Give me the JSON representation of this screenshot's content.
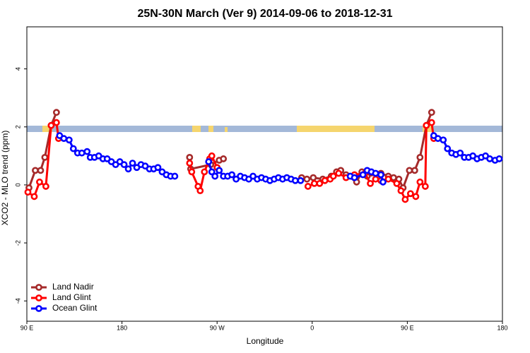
{
  "chart_data": {
    "type": "line",
    "title": "25N-30N March (Ver 9)   2014-09-06 to 2018-12-31",
    "xlabel": "Longitude",
    "ylabel": "XCO2 - MLO trend (ppm)",
    "xlim": [
      90,
      540
    ],
    "ylim": [
      -4.7,
      5.45
    ],
    "xticks": [
      {
        "value": 90,
        "label": "90 E"
      },
      {
        "value": 180,
        "label": "180"
      },
      {
        "value": 270,
        "label": "90 W"
      },
      {
        "value": 360,
        "label": "0"
      },
      {
        "value": 450,
        "label": "90 E"
      },
      {
        "value": 540,
        "label": "180"
      }
    ],
    "yticks": [
      -4,
      -2,
      0,
      2,
      4
    ],
    "legend": "bottom-left",
    "series": [
      {
        "name": "Land Nadir",
        "color": "#a52a2a",
        "x": [
          92,
          98,
          103,
          107,
          113,
          118,
          180,
          244,
          245,
          264,
          272,
          276,
          310,
          350,
          355,
          361,
          370,
          378,
          383,
          387,
          392,
          402,
          407,
          412,
          425,
          432,
          437,
          442,
          446,
          452,
          457,
          462,
          468,
          473
        ],
        "values": [
          -0.1,
          0.5,
          0.5,
          0.95,
          2.05,
          2.5,
          null,
          0.95,
          0.55,
          0.7,
          0.85,
          0.9,
          null,
          0.25,
          0.2,
          0.25,
          0.2,
          0.3,
          0.45,
          0.5,
          0.35,
          0.1,
          0.45,
          0.3,
          0.4,
          0.3,
          0.25,
          0.2,
          -0.1,
          0.5,
          0.5,
          0.95,
          2.05,
          2.5
        ]
      },
      {
        "name": "Land Glint",
        "color": "#ff0000",
        "x": [
          91,
          97,
          102,
          108,
          113,
          118,
          120,
          180,
          244,
          246,
          252,
          254,
          258,
          263,
          265,
          270,
          300,
          356,
          362,
          367,
          372,
          377,
          380,
          385,
          392,
          400,
          410,
          415,
          420,
          425,
          432,
          440,
          444,
          448,
          453,
          458,
          462,
          467,
          468,
          473,
          475
        ],
        "values": [
          -0.25,
          -0.4,
          0.1,
          -0.05,
          2.05,
          2.15,
          1.6,
          null,
          0.75,
          0.45,
          -0.05,
          -0.2,
          0.45,
          0.9,
          1.0,
          0.6,
          null,
          -0.05,
          0.05,
          0.05,
          0.15,
          0.2,
          0.3,
          0.4,
          0.25,
          0.35,
          0.4,
          0.05,
          0.2,
          0.15,
          0.2,
          0.05,
          -0.2,
          -0.5,
          -0.3,
          -0.4,
          0.1,
          -0.05,
          2.05,
          2.15,
          1.6
        ]
      },
      {
        "name": "Ocean Glint",
        "color": "#0000ff",
        "x": [
          121,
          125,
          130,
          134,
          138,
          142,
          147,
          150,
          154,
          158,
          162,
          166,
          170,
          174,
          178,
          182,
          186,
          190,
          194,
          198,
          202,
          206,
          210,
          214,
          218,
          222,
          226,
          230,
          246,
          262,
          265,
          268,
          272,
          276,
          280,
          284,
          288,
          292,
          296,
          300,
          304,
          308,
          312,
          316,
          320,
          324,
          328,
          332,
          336,
          340,
          344,
          349,
          370,
          396,
          400,
          408,
          412,
          416,
          420,
          425,
          427,
          450,
          475,
          479,
          484,
          488,
          492,
          496,
          500,
          504,
          508,
          512,
          516,
          520,
          524,
          528,
          533,
          537
        ],
        "values": [
          1.7,
          1.6,
          1.55,
          1.25,
          1.1,
          1.1,
          1.15,
          0.95,
          0.95,
          1.0,
          0.9,
          0.9,
          0.8,
          0.7,
          0.8,
          0.7,
          0.55,
          0.75,
          0.6,
          0.7,
          0.65,
          0.55,
          0.55,
          0.6,
          0.45,
          0.35,
          0.3,
          0.3,
          null,
          0.8,
          0.45,
          0.3,
          0.5,
          0.3,
          0.3,
          0.35,
          0.2,
          0.3,
          0.25,
          0.2,
          0.3,
          0.2,
          0.25,
          0.2,
          0.15,
          0.2,
          0.25,
          0.2,
          0.25,
          0.2,
          0.15,
          0.15,
          null,
          0.3,
          0.25,
          0.35,
          0.5,
          0.45,
          0.4,
          0.35,
          0.1,
          null,
          1.7,
          1.6,
          1.55,
          1.25,
          1.1,
          1.05,
          1.1,
          0.95,
          0.95,
          1.0,
          0.9,
          0.95,
          1.0,
          0.9,
          0.85,
          0.9
        ]
      }
    ]
  }
}
